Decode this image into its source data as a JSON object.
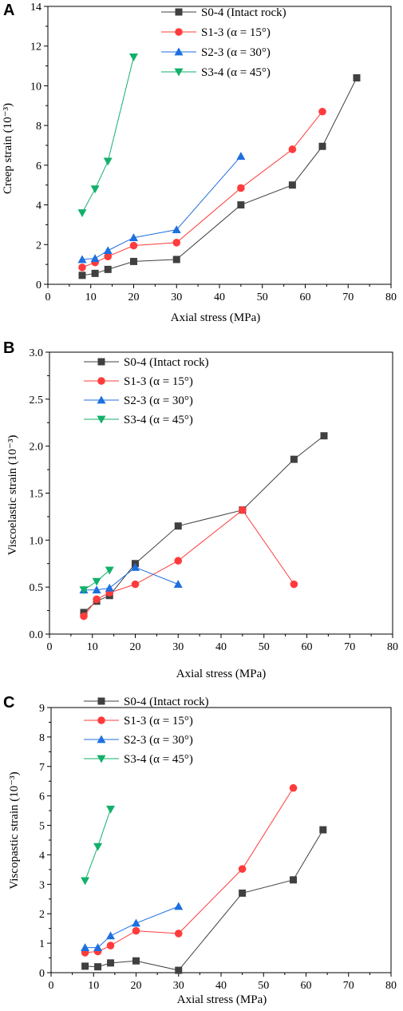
{
  "legend_labels": [
    "S0-4 (Intact rock)",
    "S1-3 (α = 15°)",
    "S2-3 (α = 30°)",
    "S3-4 (α = 45°)"
  ],
  "chart_data": [
    {
      "type": "line",
      "panel": "A",
      "xlabel": "Axial stress (MPa)",
      "ylabel": "Creep strain (10⁻³)",
      "xlim": [
        0,
        80
      ],
      "ylim": [
        0,
        14
      ],
      "xticks": [
        "0",
        "10",
        "20",
        "30",
        "40",
        "50",
        "60",
        "70",
        "80"
      ],
      "yticks": [
        "0",
        "2",
        "4",
        "6",
        "8",
        "10",
        "12",
        "14"
      ],
      "legend": "top-center",
      "grid": false,
      "series": [
        {
          "name": "S0-4 (Intact rock)",
          "color": "#404040",
          "marker": "square",
          "x": [
            8,
            11,
            14,
            20,
            30,
            45,
            57,
            64,
            72
          ],
          "y": [
            0.45,
            0.55,
            0.75,
            1.15,
            1.25,
            4.0,
            5.0,
            6.95,
            10.4
          ]
        },
        {
          "name": "S1-3 (α = 15°)",
          "color": "#ff3b3b",
          "marker": "circle",
          "x": [
            8,
            11,
            14,
            20,
            30,
            45,
            57,
            64
          ],
          "y": [
            0.85,
            1.1,
            1.4,
            1.95,
            2.1,
            4.85,
            6.8,
            8.7
          ]
        },
        {
          "name": "S2-3 (α = 30°)",
          "color": "#1e6fe0",
          "marker": "triangle-up",
          "x": [
            8,
            11,
            14,
            20,
            30,
            45
          ],
          "y": [
            1.25,
            1.3,
            1.7,
            2.35,
            2.75,
            6.45
          ]
        },
        {
          "name": "S3-4 (α = 45°)",
          "color": "#12b06a",
          "marker": "triangle-down",
          "x": [
            8,
            11,
            14,
            20
          ],
          "y": [
            3.6,
            4.8,
            6.2,
            11.45
          ]
        }
      ]
    },
    {
      "type": "line",
      "panel": "B",
      "xlabel": "Axial stress (MPa)",
      "ylabel": "Viscoelastic strain (10⁻³)",
      "xlim": [
        0,
        80
      ],
      "ylim": [
        0,
        3.0
      ],
      "xticks": [
        "0",
        "10",
        "20",
        "30",
        "40",
        "50",
        "60",
        "70",
        "80"
      ],
      "yticks": [
        "0.0",
        "0.5",
        "1.0",
        "1.5",
        "2.0",
        "2.5",
        "3.0"
      ],
      "legend": "top-left",
      "grid": false,
      "series": [
        {
          "name": "S0-4 (Intact rock)",
          "color": "#404040",
          "marker": "square",
          "x": [
            8,
            11,
            14,
            20,
            30,
            45,
            57,
            64
          ],
          "y": [
            0.23,
            0.35,
            0.41,
            0.75,
            1.15,
            1.32,
            1.86,
            2.11
          ]
        },
        {
          "name": "S1-3 (α = 15°)",
          "color": "#ff3b3b",
          "marker": "circle",
          "x": [
            8,
            11,
            14,
            20,
            30,
            45,
            57
          ],
          "y": [
            0.19,
            0.37,
            0.44,
            0.53,
            0.78,
            1.32,
            0.53
          ]
        },
        {
          "name": "S2-3 (α = 30°)",
          "color": "#1e6fe0",
          "marker": "triangle-up",
          "x": [
            8,
            11,
            14,
            20,
            30
          ],
          "y": [
            0.47,
            0.47,
            0.49,
            0.71,
            0.53
          ]
        },
        {
          "name": "S3-4 (α = 45°)",
          "color": "#12b06a",
          "marker": "triangle-down",
          "x": [
            8,
            11,
            14
          ],
          "y": [
            0.47,
            0.56,
            0.68
          ]
        }
      ]
    },
    {
      "type": "line",
      "panel": "C",
      "xlabel": "Axial stress (MPa)",
      "ylabel": "Viscopastic strain (10⁻³)",
      "xlim": [
        0,
        80
      ],
      "ylim": [
        0,
        9
      ],
      "xticks": [
        "0",
        "10",
        "20",
        "30",
        "40",
        "50",
        "60",
        "70",
        "80"
      ],
      "yticks": [
        "0",
        "1",
        "2",
        "3",
        "4",
        "5",
        "6",
        "7",
        "8",
        "9"
      ],
      "legend": "top-left",
      "grid": false,
      "series": [
        {
          "name": "S0-4 (Intact rock)",
          "color": "#404040",
          "marker": "square",
          "x": [
            8,
            11,
            14,
            20,
            30,
            45,
            57,
            64
          ],
          "y": [
            0.22,
            0.2,
            0.33,
            0.4,
            0.08,
            2.7,
            3.15,
            4.85
          ]
        },
        {
          "name": "S1-3 (α = 15°)",
          "color": "#ff3b3b",
          "marker": "circle",
          "x": [
            8,
            11,
            14,
            20,
            30,
            45,
            57
          ],
          "y": [
            0.68,
            0.72,
            0.92,
            1.42,
            1.33,
            3.52,
            6.27
          ]
        },
        {
          "name": "S2-3 (α = 30°)",
          "color": "#1e6fe0",
          "marker": "triangle-up",
          "x": [
            8,
            11,
            14,
            20,
            30
          ],
          "y": [
            0.85,
            0.85,
            1.25,
            1.68,
            2.25
          ]
        },
        {
          "name": "S3-4 (α = 45°)",
          "color": "#12b06a",
          "marker": "triangle-down",
          "x": [
            8,
            11,
            14
          ],
          "y": [
            3.12,
            4.28,
            5.55
          ]
        }
      ]
    }
  ]
}
